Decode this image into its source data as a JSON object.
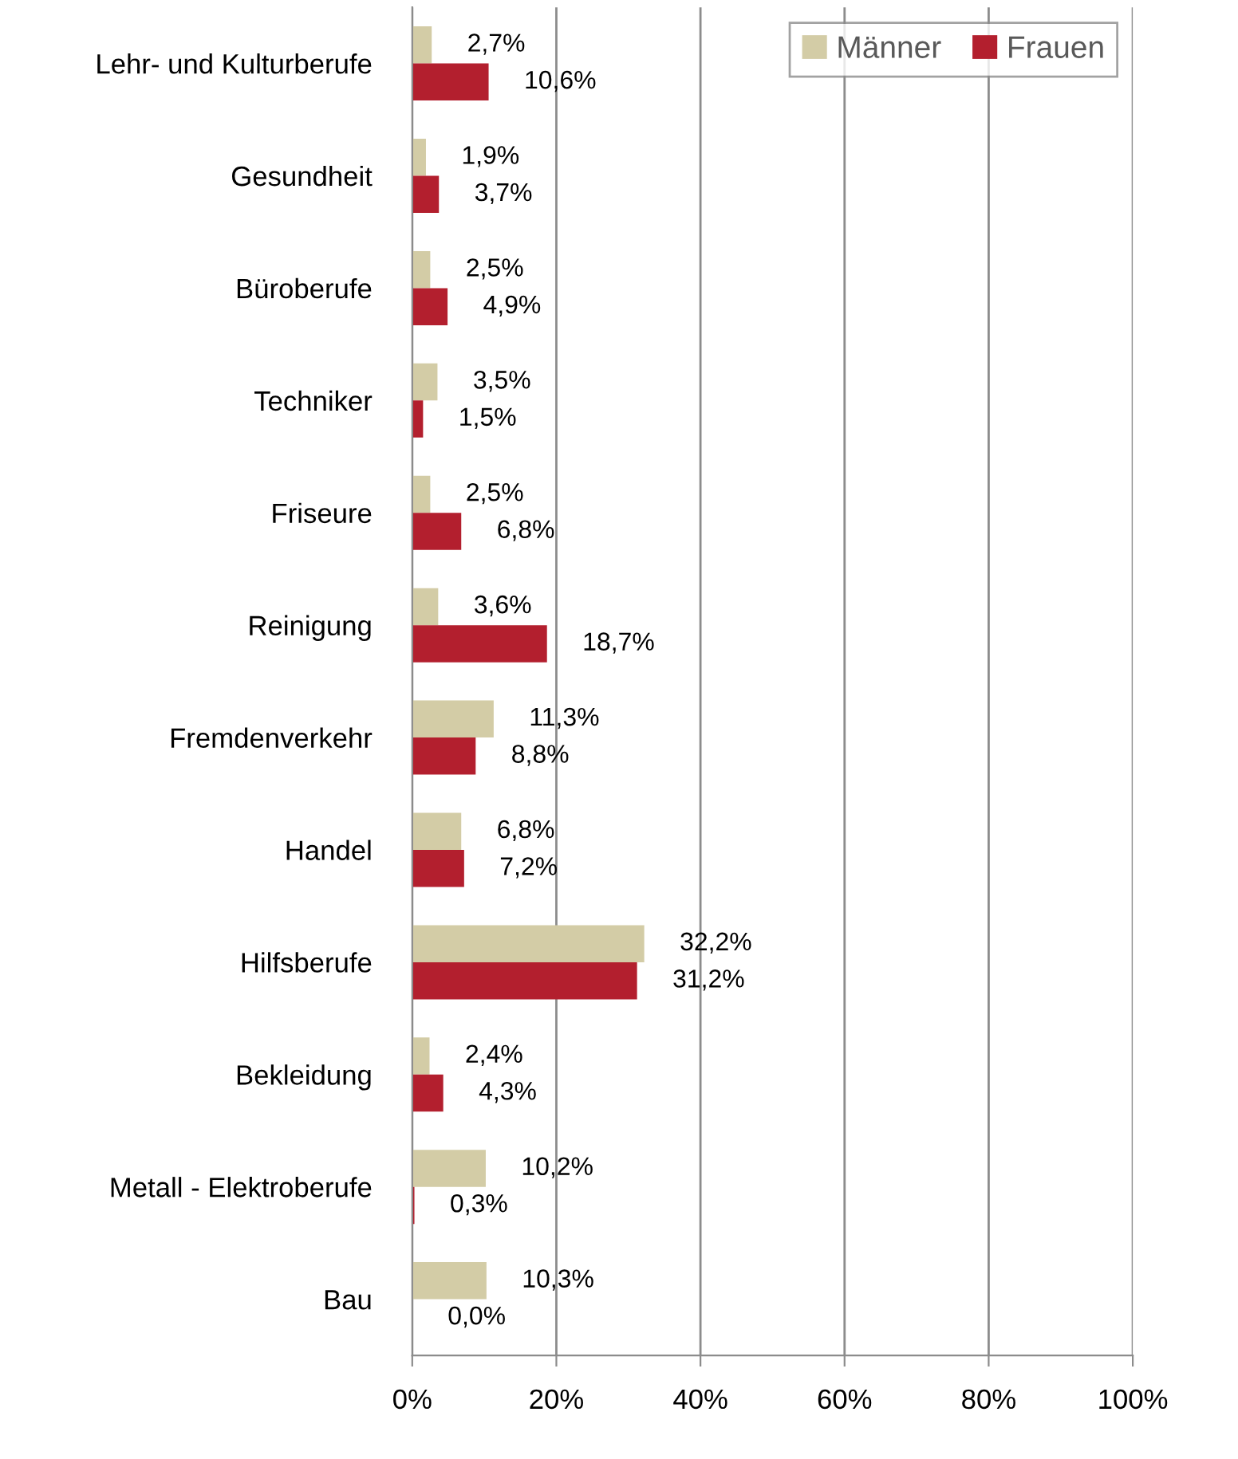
{
  "chart_data": {
    "type": "bar",
    "orientation": "horizontal",
    "categories": [
      "Lehr- und Kulturberufe",
      "Gesundheit",
      "Büroberufe",
      "Techniker",
      "Friseure",
      "Reinigung",
      "Fremdenverkehr",
      "Handel",
      "Hilfsberufe",
      "Bekleidung",
      "Metall - Elektroberufe",
      "Bau"
    ],
    "series": [
      {
        "name": "Männer",
        "color": "#d3cca6",
        "values": [
          2.7,
          1.9,
          2.5,
          3.5,
          2.5,
          3.6,
          11.3,
          6.8,
          32.2,
          2.4,
          10.2,
          10.3
        ],
        "value_labels": [
          "2,7%",
          "1,9%",
          "2,5%",
          "3,5%",
          "2,5%",
          "3,6%",
          "11,3%",
          "6,8%",
          "32,2%",
          "2,4%",
          "10,2%",
          "10,3%"
        ]
      },
      {
        "name": "Frauen",
        "color": "#b31f2e",
        "values": [
          10.6,
          3.7,
          4.9,
          1.5,
          6.8,
          18.7,
          8.8,
          7.2,
          31.2,
          4.3,
          0.3,
          0.0
        ],
        "value_labels": [
          "10,6%",
          "3,7%",
          "4,9%",
          "1,5%",
          "6,8%",
          "18,7%",
          "8,8%",
          "7,2%",
          "31,2%",
          "4,3%",
          "0,3%",
          "0,0%"
        ]
      }
    ],
    "xlim": [
      0,
      100
    ],
    "xticks": [
      {
        "value": 0,
        "label": "0%"
      },
      {
        "value": 20,
        "label": "20%"
      },
      {
        "value": 40,
        "label": "40%"
      },
      {
        "value": 60,
        "label": "60%"
      },
      {
        "value": 80,
        "label": "80%"
      },
      {
        "value": 100,
        "label": "100%"
      }
    ],
    "grid": "x",
    "legend": "top right"
  }
}
